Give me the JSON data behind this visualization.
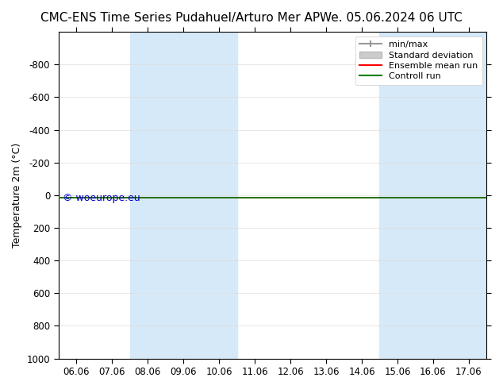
{
  "title_left": "CMC-ENS Time Series Pudahuel/Arturo Mer AP",
  "title_right": "We. 05.06.2024 06 UTC",
  "ylabel": "Temperature 2m (°C)",
  "xlim_dates": [
    "06.06",
    "07.06",
    "08.06",
    "09.06",
    "10.06",
    "11.06",
    "12.06",
    "13.06",
    "14.06",
    "15.06",
    "16.06",
    "17.06"
  ],
  "ylim": [
    -1000,
    1000
  ],
  "yticks": [
    -800,
    -600,
    -400,
    -200,
    0,
    200,
    400,
    600,
    800,
    1000
  ],
  "background_color": "#ffffff",
  "plot_bg_color": "#ffffff",
  "shaded_bands": [
    {
      "x_start": "08.06",
      "x_end": "10.06",
      "color": "#d6e9f8"
    },
    {
      "x_start": "15.06",
      "x_end": "17.06",
      "color": "#d6e9f8"
    }
  ],
  "control_run_value": 14.0,
  "control_run_color": "#008000",
  "ensemble_mean_color": "#ff0000",
  "minmax_color": "#999999",
  "std_dev_color": "#cccccc",
  "watermark_text": "© woeurope.eu",
  "watermark_color": "#0000cc",
  "legend_entries": [
    "min/max",
    "Standard deviation",
    "Ensemble mean run",
    "Controll run"
  ],
  "title_fontsize": 11,
  "axis_fontsize": 9,
  "tick_fontsize": 8.5
}
